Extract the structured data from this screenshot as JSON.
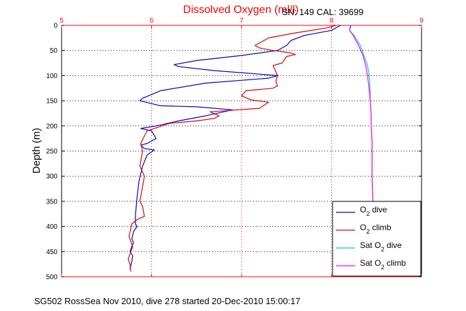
{
  "title": "Dissolved Oxygen (ml/l)",
  "serial": "SN: 149  CAL: 39699",
  "footer": "SG502 RossSea Nov 2010, dive 278 started 20-Dec-2010 15:00:17",
  "chart_data": {
    "type": "line",
    "title": "Dissolved Oxygen (ml/l)",
    "xlabel": "",
    "ylabel": "Depth (m)",
    "xlim": [
      5,
      9
    ],
    "ylim": [
      0,
      500
    ],
    "y_reversed": true,
    "x_axis_position": "top",
    "x_ticks": [
      5,
      6,
      7,
      8,
      9
    ],
    "y_ticks": [
      0,
      50,
      100,
      150,
      200,
      250,
      300,
      350,
      400,
      450,
      500
    ],
    "grid": true,
    "legend_position": "bottom-right",
    "colors": {
      "title": "#ff0000",
      "x_axis": "#ff0000",
      "grid": "#000000",
      "o2_dive": "#0000cc",
      "o2_climb": "#dd0000",
      "sat_dive": "#00cccc",
      "sat_climb": "#ff00ff"
    },
    "series": [
      {
        "name": "O2 dive",
        "legend_main": "O",
        "legend_sub": "2",
        "legend_rest": " dive",
        "key": "o2_dive",
        "color": "#0000cc",
        "x": [
          8.1,
          8.0,
          7.7,
          7.55,
          7.5,
          7.45,
          7.4,
          7.0,
          6.5,
          6.25,
          6.3,
          6.7,
          7.2,
          7.4,
          7.3,
          6.6,
          6.1,
          5.9,
          5.87,
          6.1,
          6.5,
          6.9,
          6.6,
          6.3,
          6.05,
          5.88,
          6.0,
          6.05,
          5.95,
          5.88,
          5.92,
          6.03,
          5.95,
          5.9,
          5.86,
          5.84,
          5.83,
          5.82,
          5.82,
          5.84,
          5.8,
          5.78,
          5.8,
          5.78,
          5.76,
          5.79,
          5.78,
          5.76
        ],
        "y": [
          0,
          10,
          20,
          30,
          40,
          45,
          50,
          60,
          70,
          78,
          82,
          90,
          97,
          100,
          105,
          115,
          130,
          145,
          150,
          160,
          162,
          168,
          180,
          190,
          200,
          205,
          210,
          225,
          235,
          238,
          245,
          248,
          258,
          280,
          310,
          340,
          360,
          380,
          395,
          400,
          410,
          425,
          432,
          440,
          450,
          458,
          470,
          485
        ]
      },
      {
        "name": "O2 climb",
        "legend_main": "O",
        "legend_sub": "2",
        "legend_rest": " climb",
        "key": "o2_climb",
        "color": "#dd0000",
        "x": [
          8.05,
          7.95,
          7.6,
          7.3,
          7.15,
          7.2,
          7.35,
          7.55,
          7.6,
          7.5,
          7.45,
          7.35,
          7.4,
          7.38,
          7.4,
          7.35,
          7.05,
          7.0,
          7.1,
          7.3,
          7.2,
          6.8,
          6.65,
          6.75,
          6.7,
          6.5,
          6.2,
          5.95,
          5.92,
          5.88,
          5.9,
          5.87,
          5.92,
          5.9,
          5.87,
          5.9,
          5.92,
          5.85,
          5.78,
          5.75,
          5.79,
          5.76,
          5.74,
          5.76,
          5.77
        ],
        "y": [
          0,
          5,
          15,
          25,
          40,
          45,
          50,
          55,
          58,
          62,
          75,
          80,
          100,
          112,
          120,
          125,
          130,
          140,
          148,
          153,
          165,
          170,
          172,
          180,
          185,
          190,
          195,
          210,
          220,
          235,
          250,
          280,
          300,
          320,
          350,
          360,
          380,
          385,
          395,
          420,
          440,
          455,
          465,
          475,
          490
        ]
      },
      {
        "name": "Sat O2 dive",
        "legend_main": "Sat O",
        "legend_sub": "2",
        "legend_rest": " dive",
        "key": "sat_dive",
        "color": "#00cccc",
        "x": [
          8.22,
          8.2,
          8.25,
          8.32,
          8.36,
          8.4,
          8.42,
          8.43,
          8.43,
          8.44,
          8.44,
          8.45,
          8.45,
          8.45,
          8.46,
          8.46,
          8.46,
          8.47
        ],
        "y": [
          0,
          10,
          20,
          40,
          60,
          80,
          100,
          130,
          150,
          180,
          200,
          230,
          260,
          300,
          350,
          400,
          450,
          500
        ]
      },
      {
        "name": "Sat O2 climb",
        "legend_main": "Sat O",
        "legend_sub": "2",
        "legend_rest": " climb",
        "key": "sat_climb",
        "color": "#ff00ff",
        "x": [
          8.21,
          8.2,
          8.24,
          8.3,
          8.35,
          8.38,
          8.4,
          8.42,
          8.43,
          8.44,
          8.44,
          8.45,
          8.45,
          8.45,
          8.46,
          8.46,
          8.46,
          8.47
        ],
        "y": [
          0,
          10,
          20,
          40,
          60,
          80,
          100,
          130,
          150,
          180,
          200,
          230,
          260,
          300,
          350,
          400,
          450,
          500
        ]
      }
    ]
  }
}
